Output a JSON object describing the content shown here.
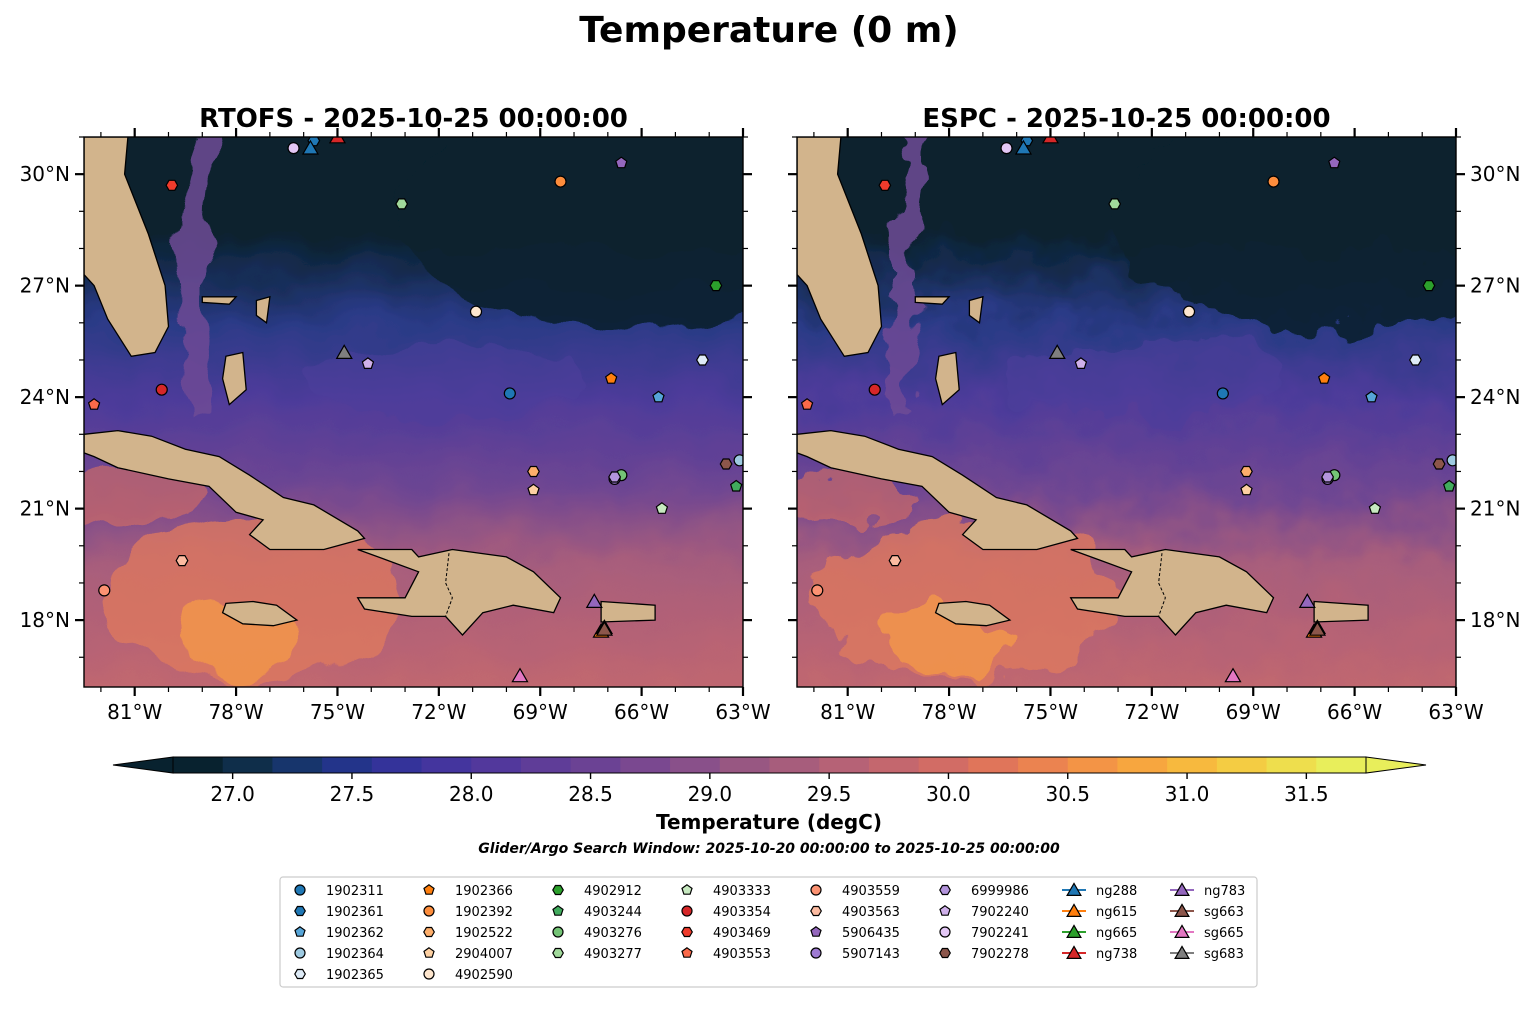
{
  "figure": {
    "title": "Temperature (0 m)",
    "search_window": "Glider/Argo Search Window: 2025-10-20 00:00:00 to 2025-10-25 00:00:00"
  },
  "colors": {
    "land": "#d2b48c",
    "deep": "#08222f",
    "mid": "#5b3f96",
    "warm": "#c05f76",
    "hot": "#f0854e"
  },
  "chart_data": [
    {
      "type": "heatmap",
      "title": "RTOFS - 2025-10-25 00:00:00",
      "xlim": [
        -82.5,
        -63
      ],
      "ylim": [
        16.2,
        31
      ],
      "xticks": [
        -81,
        -78,
        -75,
        -72,
        -69,
        -66,
        -63
      ],
      "xtick_labels": [
        "81°W",
        "78°W",
        "75°W",
        "72°W",
        "69°W",
        "66°W",
        "63°W"
      ],
      "yticks": [
        18,
        21,
        24,
        27,
        30
      ],
      "ytick_labels": [
        "18°N",
        "21°N",
        "24°N",
        "27°N",
        "30°N"
      ],
      "ytick_side": "left"
    },
    {
      "type": "heatmap",
      "title": "ESPC - 2025-10-25 00:00:00",
      "xlim": [
        -82.5,
        -63
      ],
      "ylim": [
        16.2,
        31
      ],
      "xticks": [
        -81,
        -78,
        -75,
        -72,
        -69,
        -66,
        -63
      ],
      "xtick_labels": [
        "81°W",
        "78°W",
        "75°W",
        "72°W",
        "69°W",
        "66°W",
        "63°W"
      ],
      "yticks": [
        18,
        21,
        24,
        27,
        30
      ],
      "ytick_labels": [
        "18°N",
        "21°N",
        "24°N",
        "27°N",
        "30°N"
      ],
      "ytick_side": "right"
    }
  ],
  "colorbar": {
    "label": "Temperature (degC)",
    "vmin": 26.75,
    "vmax": 31.75,
    "ticks": [
      27.0,
      27.5,
      28.0,
      28.5,
      29.0,
      29.5,
      30.0,
      30.5,
      31.0,
      31.5
    ],
    "tick_labels": [
      "27.0",
      "27.5",
      "28.0",
      "28.5",
      "29.0",
      "29.5",
      "30.0",
      "30.5",
      "31.0",
      "31.5"
    ],
    "colors": [
      "#08222f",
      "#0f2e4a",
      "#17356c",
      "#23348a",
      "#34339a",
      "#44359e",
      "#52389c",
      "#5f3d98",
      "#6b4294",
      "#7a4890",
      "#89508a",
      "#985782",
      "#a75d7c",
      "#b66276",
      "#c4676e",
      "#d26c65",
      "#e0755a",
      "#eb8350",
      "#f39446",
      "#f7a63f",
      "#f7b93e",
      "#f4cc43",
      "#eede4d",
      "#e8ee5b"
    ]
  },
  "markers": [
    {
      "id": "1902311",
      "shape": "circle",
      "color": "#1f77b4",
      "lon": -69.9,
      "lat": 24.1
    },
    {
      "id": "1902361",
      "shape": "hexagon",
      "color": "#1f77b4",
      "lon": -75.7,
      "lat": 30.9
    },
    {
      "id": "1902362",
      "shape": "pentagon",
      "color": "#56a5d8",
      "lon": -65.5,
      "lat": 24.0
    },
    {
      "id": "1902364",
      "shape": "circle",
      "color": "#9ecae1",
      "lon": -63.1,
      "lat": 22.3
    },
    {
      "id": "1902365",
      "shape": "hexagon",
      "color": "#deebf7",
      "lon": -64.2,
      "lat": 25.0
    },
    {
      "id": "1902366",
      "shape": "pentagon",
      "color": "#ff7f0e",
      "lon": -66.9,
      "lat": 24.5
    },
    {
      "id": "1902392",
      "shape": "circle",
      "color": "#fd8d3c",
      "lon": -68.4,
      "lat": 29.8
    },
    {
      "id": "1902522",
      "shape": "hexagon",
      "color": "#fdae6b",
      "lon": -69.2,
      "lat": 22.0
    },
    {
      "id": "2904007",
      "shape": "pentagon",
      "color": "#fdd0a2",
      "lon": -69.2,
      "lat": 21.5
    },
    {
      "id": "4902590",
      "shape": "circle",
      "color": "#fee6ce",
      "lon": -70.9,
      "lat": 26.3
    },
    {
      "id": "4902912",
      "shape": "hexagon",
      "color": "#2ca02c",
      "lon": -63.8,
      "lat": 27.0
    },
    {
      "id": "4903244",
      "shape": "pentagon",
      "color": "#41ab5d",
      "lon": -63.2,
      "lat": 21.6
    },
    {
      "id": "4903276",
      "shape": "circle",
      "color": "#74c476",
      "lon": -66.6,
      "lat": 21.9
    },
    {
      "id": "4903277",
      "shape": "hexagon",
      "color": "#a1d99b",
      "lon": -73.1,
      "lat": 29.2
    },
    {
      "id": "4903333",
      "shape": "pentagon",
      "color": "#c7e9c0",
      "lon": -65.4,
      "lat": 21.0
    },
    {
      "id": "4903354",
      "shape": "circle",
      "color": "#d62728",
      "lon": -80.2,
      "lat": 24.2
    },
    {
      "id": "4903469",
      "shape": "hexagon",
      "color": "#ef3b2c",
      "lon": -79.9,
      "lat": 29.7
    },
    {
      "id": "4903553",
      "shape": "pentagon",
      "color": "#fb6a4a",
      "lon": -82.2,
      "lat": 23.8
    },
    {
      "id": "4903559",
      "shape": "circle",
      "color": "#fc9272",
      "lon": -81.9,
      "lat": 18.8
    },
    {
      "id": "4903563",
      "shape": "hexagon",
      "color": "#fcbba1",
      "lon": -79.6,
      "lat": 19.6
    },
    {
      "id": "5906435",
      "shape": "pentagon",
      "color": "#9467bd",
      "lon": -66.6,
      "lat": 30.3
    },
    {
      "id": "5907143",
      "shape": "circle",
      "color": "#9e7ad2",
      "lon": -66.8,
      "lat": 21.8
    },
    {
      "id": "6999986",
      "shape": "hexagon",
      "color": "#b394dc",
      "lon": -66.8,
      "lat": 21.85
    },
    {
      "id": "7902240",
      "shape": "pentagon",
      "color": "#cfb0ea",
      "lon": -74.1,
      "lat": 24.9
    },
    {
      "id": "7902241",
      "shape": "circle",
      "color": "#e3c7f5",
      "lon": -76.3,
      "lat": 30.7
    },
    {
      "id": "7902278",
      "shape": "hexagon",
      "color": "#8c564b",
      "lon": -63.5,
      "lat": 22.2
    },
    {
      "id": "ng288",
      "shape": "triangle",
      "color": "#1f77b4",
      "lon": -75.8,
      "lat": 30.7
    },
    {
      "id": "ng615",
      "shape": "triangle",
      "color": "#ff7f0e",
      "lon": -67.2,
      "lat": 17.7
    },
    {
      "id": "ng665",
      "shape": "triangle",
      "color": "#2ca02c",
      "lon": -67.1,
      "lat": 17.8
    },
    {
      "id": "ng738",
      "shape": "triangle",
      "color": "#d62728",
      "lon": -75.0,
      "lat": 31.0
    },
    {
      "id": "ng783",
      "shape": "triangle",
      "color": "#9467bd",
      "lon": -67.4,
      "lat": 18.5
    },
    {
      "id": "sg663",
      "shape": "triangle",
      "color": "#8c564b",
      "lon": -67.1,
      "lat": 17.75
    },
    {
      "id": "sg665",
      "shape": "triangle",
      "color": "#e377c2",
      "lon": -69.6,
      "lat": 16.5
    },
    {
      "id": "sg683",
      "shape": "triangle",
      "color": "#7f7f7f",
      "lon": -74.8,
      "lat": 25.2
    }
  ],
  "legend_columns": [
    [
      "1902311",
      "1902361",
      "1902362",
      "1902364",
      "1902365"
    ],
    [
      "1902366",
      "1902392",
      "1902522",
      "2904007",
      "4902590"
    ],
    [
      "4902912",
      "4903244",
      "4903276",
      "4903277"
    ],
    [
      "4903333",
      "4903354",
      "4903469",
      "4903553"
    ],
    [
      "4903559",
      "4903563",
      "5906435",
      "5907143"
    ],
    [
      "6999986",
      "7902240",
      "7902241",
      "7902278"
    ],
    [
      "ng288",
      "ng615",
      "ng665",
      "ng738"
    ],
    [
      "ng783",
      "sg663",
      "sg665",
      "sg683"
    ]
  ]
}
